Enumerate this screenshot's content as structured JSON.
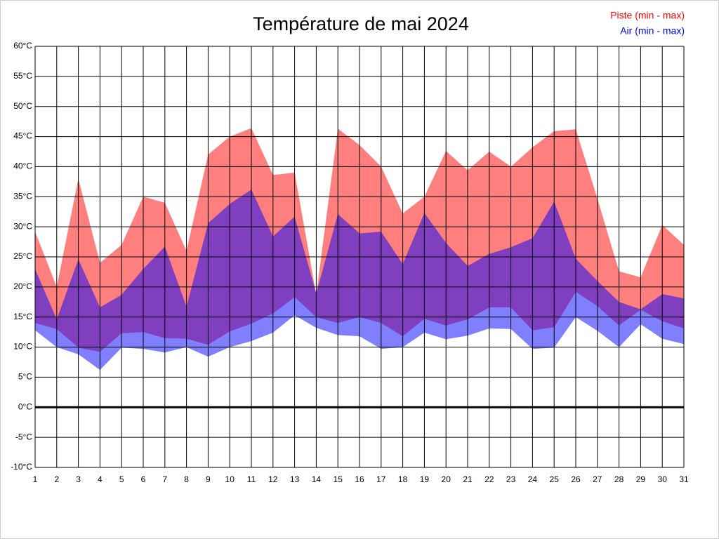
{
  "chart_data": {
    "type": "range-area",
    "title": "Température de mai 2024",
    "x": [
      1,
      2,
      3,
      4,
      5,
      6,
      7,
      8,
      9,
      10,
      11,
      12,
      13,
      14,
      15,
      16,
      17,
      18,
      19,
      20,
      21,
      22,
      23,
      24,
      25,
      26,
      27,
      28,
      29,
      30,
      31
    ],
    "xlim": [
      1,
      31
    ],
    "ylim": [
      -10,
      60
    ],
    "yticks": [
      {
        "value": -10,
        "label": "-10°C"
      },
      {
        "value": -5,
        "label": "-5°C"
      },
      {
        "value": 0,
        "label": "0°C"
      },
      {
        "value": 5,
        "label": "5°C"
      },
      {
        "value": 10,
        "label": "10°C"
      },
      {
        "value": 15,
        "label": "15°C"
      },
      {
        "value": 20,
        "label": "20°C"
      },
      {
        "value": 25,
        "label": "25°C"
      },
      {
        "value": 30,
        "label": "30°C"
      },
      {
        "value": 35,
        "label": "35°C"
      },
      {
        "value": 40,
        "label": "40°C"
      },
      {
        "value": 45,
        "label": "45°C"
      },
      {
        "value": 50,
        "label": "50°C"
      },
      {
        "value": 55,
        "label": "55°C"
      },
      {
        "value": 60,
        "label": "60°C"
      }
    ],
    "grid": true,
    "zero_line": true,
    "legend": "top-right",
    "series": [
      {
        "name": "Piste (min - max)",
        "color": "#ff0000",
        "min": [
          14,
          13,
          9.9,
          9.2,
          12.3,
          12.5,
          11.5,
          11.4,
          10.4,
          12.6,
          13.9,
          15.6,
          18.3,
          15,
          14,
          15,
          14,
          11.8,
          14.7,
          13.6,
          14.6,
          16.6,
          16.6,
          12.8,
          13.3,
          19.2,
          16.8,
          13.6,
          16.2,
          14.3,
          13.1
        ],
        "max": [
          29.2,
          20,
          38,
          24,
          27,
          35,
          34,
          26,
          42,
          45,
          46.4,
          38.6,
          39,
          18.7,
          46.3,
          43.6,
          40,
          32.2,
          35,
          42.6,
          39.4,
          42.5,
          40,
          43.2,
          45.9,
          46.2,
          34.7,
          22.6,
          21.6,
          30.3,
          27
        ]
      },
      {
        "name": "Air (min - max)",
        "color": "#0000ff",
        "min": [
          12.8,
          10,
          8.8,
          6.2,
          9.9,
          9.7,
          9.1,
          10,
          8.4,
          10,
          11,
          12.4,
          15.3,
          13.2,
          12,
          11.8,
          9.7,
          10,
          12.4,
          11.3,
          11.9,
          13.1,
          13,
          9.7,
          9.9,
          15,
          12.7,
          10,
          13.8,
          11.4,
          10.5
        ],
        "max": [
          23,
          14.6,
          24.6,
          16.6,
          18.7,
          23,
          26.7,
          16.7,
          30.6,
          33.8,
          36.2,
          28.4,
          31.7,
          18.9,
          32.1,
          28.9,
          29.2,
          23.8,
          32.3,
          27.3,
          23.5,
          25.5,
          26.6,
          28.1,
          34.2,
          24.7,
          21,
          17.5,
          16.3,
          18.8,
          18.1
        ]
      }
    ]
  }
}
